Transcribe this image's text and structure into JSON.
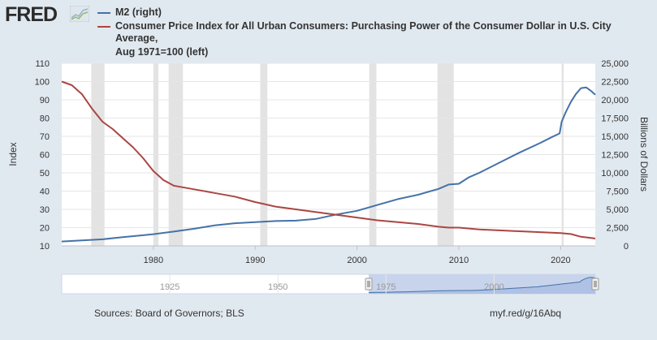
{
  "header": {
    "logo_text": "FRED",
    "logo_icon": "fred-graph-icon"
  },
  "legend": {
    "items": [
      {
        "label": "M2 (right)",
        "color": "#4572a7"
      },
      {
        "label": "Consumer Price Index for All Urban Consumers: Purchasing Power of the Consumer Dollar in U.S. City Average,",
        "label_cont": "Aug 1971=100 (left)",
        "color": "#aa4643"
      }
    ]
  },
  "footer": {
    "source": "Sources: Board of Governors; BLS",
    "short_url": "myf.red/g/16Abq"
  },
  "navigator": {
    "tick_labels": [
      "1925",
      "1950",
      "1975",
      "2000"
    ],
    "tick_years": [
      1925,
      1950,
      1975,
      2000
    ],
    "range": [
      1900,
      2023.4
    ],
    "selected": [
      1971.0,
      2023.4
    ]
  },
  "chart_data": {
    "type": "line",
    "title": "",
    "xlabel": "",
    "xlim": [
      1971.0,
      2023.4
    ],
    "x_ticks": [
      1980,
      1990,
      2000,
      2010,
      2020
    ],
    "left_axis": {
      "label": "Index",
      "ylim": [
        10,
        110
      ],
      "ticks": [
        10,
        20,
        30,
        40,
        50,
        60,
        70,
        80,
        90,
        100,
        110
      ]
    },
    "right_axis": {
      "label": "Billions of Dollars",
      "ylim": [
        0,
        25000
      ],
      "ticks": [
        0,
        2500,
        5000,
        7500,
        10000,
        12500,
        15000,
        17500,
        20000,
        22500,
        25000
      ],
      "tick_labels": [
        "0",
        "2,500",
        "5,000",
        "7,500",
        "10,000",
        "12,500",
        "15,000",
        "17,500",
        "20,000",
        "22,500",
        "25,000"
      ]
    },
    "recessions": [
      [
        1973.9,
        1975.2
      ],
      [
        1980.0,
        1980.5
      ],
      [
        1981.5,
        1982.9
      ],
      [
        1990.5,
        1991.2
      ],
      [
        2001.2,
        2001.9
      ],
      [
        2007.9,
        2009.5
      ],
      [
        2020.1,
        2020.3
      ]
    ],
    "series": [
      {
        "name": "M2 (right)",
        "axis": "right",
        "color": "#4572a7",
        "x": [
          1971.0,
          1973,
          1975,
          1977,
          1979,
          1980,
          1982,
          1984,
          1986,
          1988,
          1990,
          1992,
          1994,
          1996,
          1998,
          2000,
          2002,
          2004,
          2006,
          2008,
          2009,
          2010,
          2011,
          2012,
          2014,
          2016,
          2018,
          2019,
          2019.9,
          2020.1,
          2020.5,
          2021,
          2021.5,
          2022,
          2022.5,
          2023,
          2023.4
        ],
        "values": [
          600,
          750,
          900,
          1200,
          1450,
          1600,
          1950,
          2350,
          2800,
          3100,
          3250,
          3400,
          3450,
          3700,
          4300,
          4800,
          5600,
          6400,
          7000,
          7800,
          8400,
          8500,
          9400,
          10000,
          11400,
          12800,
          14100,
          14800,
          15400,
          17000,
          18300,
          19700,
          20800,
          21600,
          21700,
          21200,
          20700
        ]
      },
      {
        "name": "Consumer Price Index for All Urban Consumers: Purchasing Power of the Consumer Dollar in U.S. City Average, Aug 1971=100 (left)",
        "axis": "left",
        "color": "#aa4643",
        "x": [
          1971.0,
          1972,
          1973,
          1974,
          1975,
          1976,
          1977,
          1978,
          1979,
          1980,
          1981,
          1982,
          1984,
          1986,
          1988,
          1990,
          1992,
          1994,
          1996,
          1998,
          2000,
          2002,
          2004,
          2006,
          2008,
          2009,
          2010,
          2012,
          2014,
          2016,
          2018,
          2020,
          2021,
          2022,
          2023,
          2023.4
        ],
        "values": [
          100,
          98,
          93,
          85,
          78,
          74,
          69,
          64,
          58,
          51,
          46,
          43,
          41,
          39,
          37,
          34,
          31.5,
          30,
          28.5,
          27,
          25.5,
          24,
          23,
          22,
          20.5,
          20,
          20,
          19,
          18.5,
          18,
          17.5,
          17,
          16.5,
          15,
          14.3,
          14
        ]
      }
    ]
  }
}
